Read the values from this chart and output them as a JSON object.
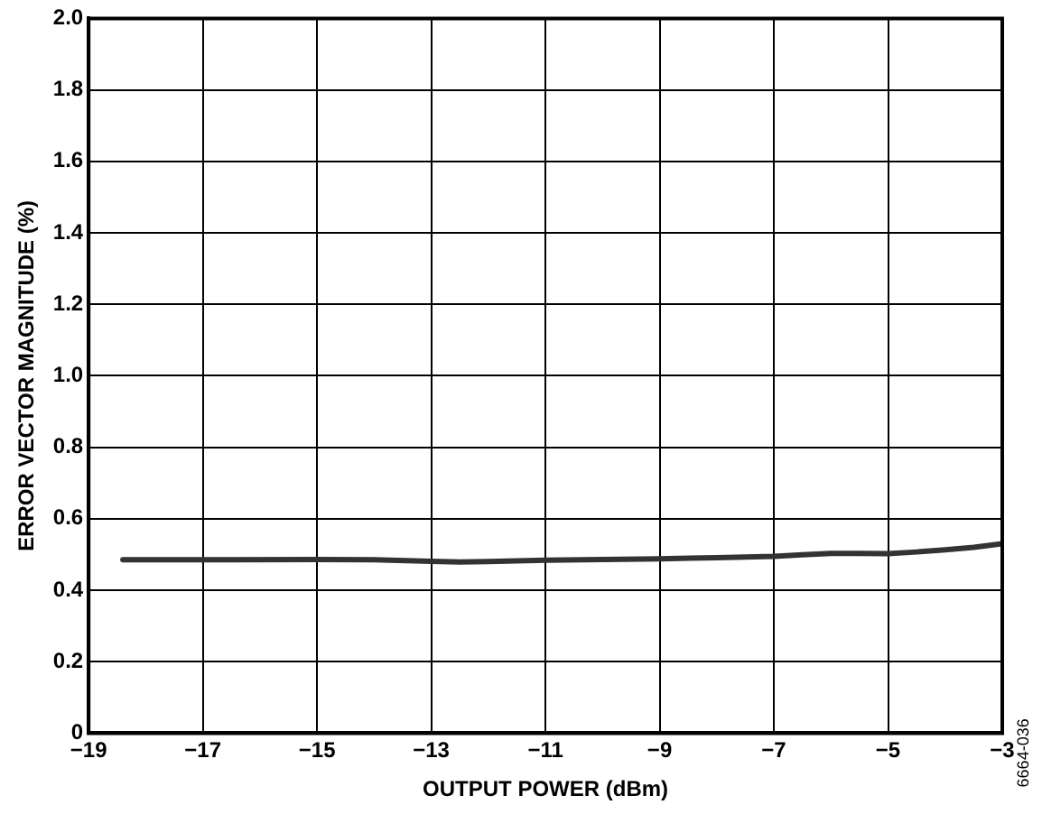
{
  "chart_data": {
    "type": "line",
    "xlabel": "OUTPUT POWER (dBm)",
    "ylabel": "ERROR VECTOR MAGNITUDE (%)",
    "annotations": [
      "6664-036"
    ],
    "x": [
      -18.4,
      -17,
      -15,
      -14,
      -13,
      -12.5,
      -12,
      -11,
      -10,
      -9,
      -8,
      -7,
      -6.5,
      -6,
      -5.5,
      -5,
      -4.5,
      -4,
      -3.5,
      -3
    ],
    "series": [
      {
        "color": "#333333",
        "values": [
          0.485,
          0.485,
          0.486,
          0.485,
          0.481,
          0.479,
          0.48,
          0.484,
          0.486,
          0.488,
          0.491,
          0.495,
          0.499,
          0.503,
          0.503,
          0.502,
          0.507,
          0.513,
          0.52,
          0.53
        ]
      }
    ],
    "xlim": [
      -19,
      -3
    ],
    "xticks": [
      {
        "value": -19,
        "label": "−19"
      },
      {
        "value": -17,
        "label": "−17"
      },
      {
        "value": -15,
        "label": "−15"
      },
      {
        "value": -13,
        "label": "−13"
      },
      {
        "value": -11,
        "label": "−11"
      },
      {
        "value": -9,
        "label": "−9"
      },
      {
        "value": -7,
        "label": "−7"
      },
      {
        "value": -5,
        "label": "−5"
      },
      {
        "value": -3,
        "label": "−3"
      }
    ],
    "ylim": [
      0,
      2.0
    ],
    "yticks": [
      0,
      {
        "value": 0.2,
        "label": "0.2"
      },
      {
        "value": 0.4,
        "label": "0.4"
      },
      {
        "value": 0.6,
        "label": "0.6"
      },
      {
        "value": 0.8,
        "label": "0.8"
      },
      {
        "value": 1.0,
        "label": "1.0"
      },
      {
        "value": 1.2,
        "label": "1.2"
      },
      {
        "value": 1.4,
        "label": "1.4"
      },
      {
        "value": 1.6,
        "label": "1.6"
      },
      {
        "value": 1.8,
        "label": "1.8"
      },
      {
        "value": 2.0,
        "label": "2.0"
      }
    ],
    "grid": true,
    "legend": false,
    "marker": "none",
    "line_style": "solid"
  }
}
